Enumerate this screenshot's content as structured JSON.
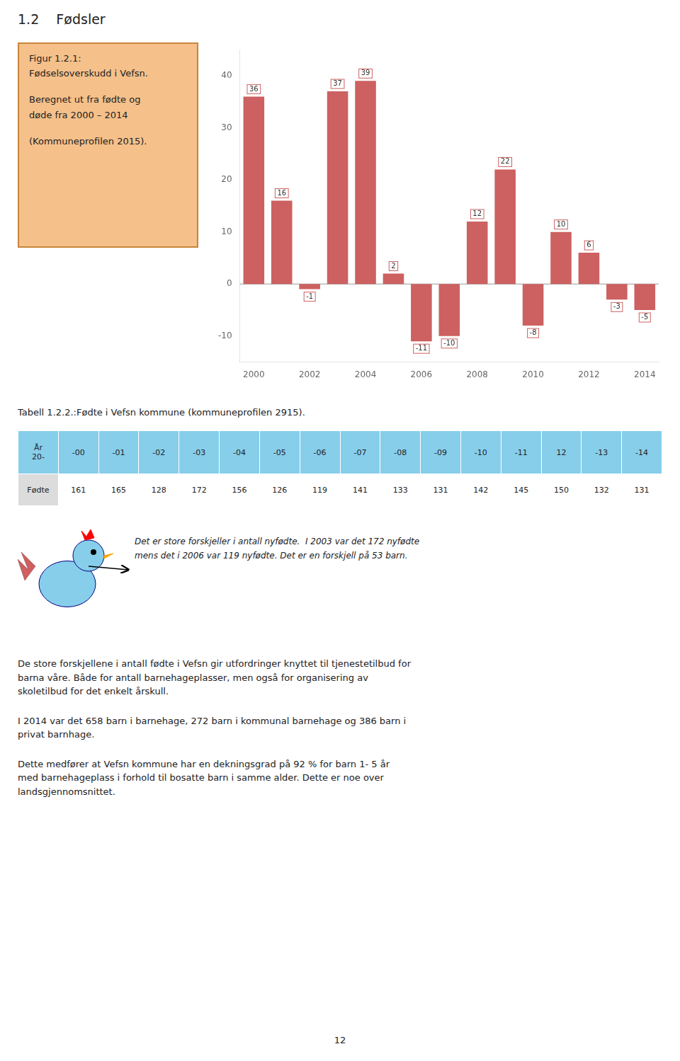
{
  "section_heading": "1.2    Fødsler",
  "chart_data": {
    "type": "bar",
    "title": [
      "Figur 1.2.1:",
      "Fødselsoverskudd i Vefsn.",
      "Beregnet ut fra fødte og",
      "døde fra 2000 – 2014",
      "(Kommuneprofilen 2015)."
    ],
    "categories": [
      "2000",
      null,
      "2002",
      null,
      "2004",
      null,
      "2006",
      null,
      "2008",
      null,
      "2010",
      null,
      "2012",
      null,
      "2014"
    ],
    "values": [
      36,
      16,
      -1,
      37,
      39,
      2,
      -11,
      -10,
      12,
      22,
      -8,
      10,
      6,
      -3,
      -5
    ],
    "color": "#CD6060",
    "ylim": [
      -15,
      45
    ],
    "yticks": [
      -10,
      0,
      10,
      20,
      30,
      40
    ],
    "grid": false,
    "data_labels": true
  },
  "table": {
    "title": "Tabell 1.2.2.:Fødte i Vefsn kommune (kommuneprofilen 2915).",
    "header": [
      "År\n20-",
      "-00",
      "-01",
      "-02",
      "-03",
      "-04",
      "-05",
      "-06",
      "-07",
      "-08",
      "-09",
      "-10",
      "-11",
      "12",
      "-13",
      "-14"
    ],
    "row_label": "Fødte",
    "values": [
      161,
      165,
      128,
      172,
      156,
      126,
      119,
      141,
      133,
      131,
      142,
      145,
      150,
      132,
      131
    ]
  },
  "quote": [
    "Det er store forskjeller i antall nyfødte.  I 2003 var det 172 nyfødte",
    "mens det i 2006 var 119 nyfødte. Det er en forskjell på 53 barn."
  ],
  "paragraphs": [
    "De store forskjellene i antall fødte i Vefsn gir utfordringer knyttet til tjenestetilbud for\nbarna våre. Både for antall barnehageplasser, men også for organisering av\nskoletilbud for det enkelt årskull.",
    "I 2014 var det 658 barn i barnehage, 272 barn i kommunal barnehage og 386 barn i\nprivat barnhage.",
    "Dette medfører at Vefsn kommune har en dekningsgrad på 92 % for barn 1- 5 år\nmed barnehageplass i forhold til bosatte barn i samme alder. Dette er noe over\nlandsgjennomsnittet."
  ],
  "page_number": "12"
}
